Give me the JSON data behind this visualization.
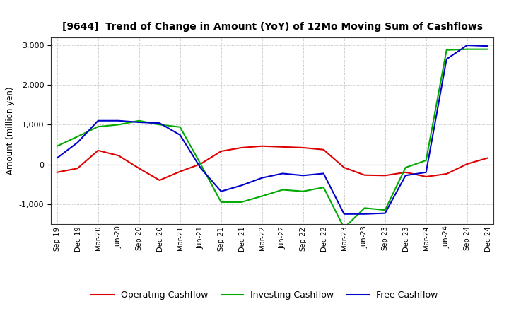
{
  "title": "[9644]  Trend of Change in Amount (YoY) of 12Mo Moving Sum of Cashflows",
  "ylabel": "Amount (million yen)",
  "x_labels": [
    "Sep-19",
    "Dec-19",
    "Mar-20",
    "Jun-20",
    "Sep-20",
    "Dec-20",
    "Mar-21",
    "Jun-21",
    "Sep-21",
    "Dec-21",
    "Mar-22",
    "Jun-22",
    "Sep-22",
    "Dec-22",
    "Mar-23",
    "Jun-23",
    "Sep-23",
    "Dec-23",
    "Mar-24",
    "Jun-24",
    "Sep-24",
    "Dec-24"
  ],
  "operating": [
    -200,
    -100,
    350,
    220,
    -100,
    -400,
    -180,
    10,
    330,
    420,
    460,
    440,
    420,
    370,
    -80,
    -270,
    -280,
    -200,
    -310,
    -240,
    10,
    160
  ],
  "investing": [
    460,
    700,
    950,
    1000,
    1100,
    1000,
    940,
    10,
    -950,
    -950,
    -800,
    -640,
    -680,
    -580,
    -1600,
    -1100,
    -1150,
    -80,
    100,
    2880,
    2900,
    2900
  ],
  "free": [
    160,
    550,
    1100,
    1100,
    1060,
    1040,
    740,
    -90,
    -680,
    -530,
    -340,
    -230,
    -280,
    -230,
    -1250,
    -1250,
    -1230,
    -280,
    -200,
    2650,
    3000,
    2980
  ],
  "ylim": [
    -1500,
    3200
  ],
  "yticks": [
    -1000,
    0,
    1000,
    2000,
    3000
  ],
  "colors": {
    "operating": "#dd0000",
    "investing": "#00aa00",
    "free": "#0000cc"
  },
  "legend_labels": [
    "Operating Cashflow",
    "Investing Cashflow",
    "Free Cashflow"
  ],
  "bg_color": "#ffffff",
  "grid_color": "#999999"
}
